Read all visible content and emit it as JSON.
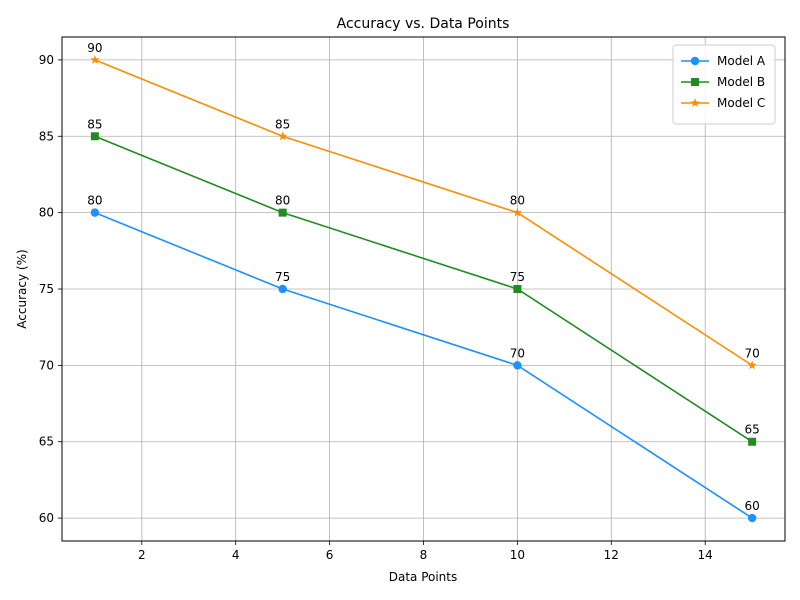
{
  "chart_data": {
    "type": "line",
    "title": "Accuracy vs. Data Points",
    "xlabel": "Data Points",
    "ylabel": "Accuracy (%)",
    "x": [
      1,
      5,
      10,
      15
    ],
    "xlim": [
      0.3,
      15.7
    ],
    "ylim": [
      58.5,
      91.5
    ],
    "xticks": [
      2,
      4,
      6,
      8,
      10,
      12,
      14
    ],
    "yticks": [
      60,
      65,
      70,
      75,
      80,
      85,
      90
    ],
    "grid": true,
    "legend_position": "top-right",
    "series": [
      {
        "name": "Model A",
        "values": [
          80,
          75,
          70,
          60
        ],
        "color": "#1E90FF",
        "marker": "circle"
      },
      {
        "name": "Model B",
        "values": [
          85,
          80,
          75,
          65
        ],
        "color": "#228B22",
        "marker": "square"
      },
      {
        "name": "Model C",
        "values": [
          90,
          85,
          80,
          70
        ],
        "color": "#FF8C00",
        "marker": "star"
      }
    ]
  }
}
